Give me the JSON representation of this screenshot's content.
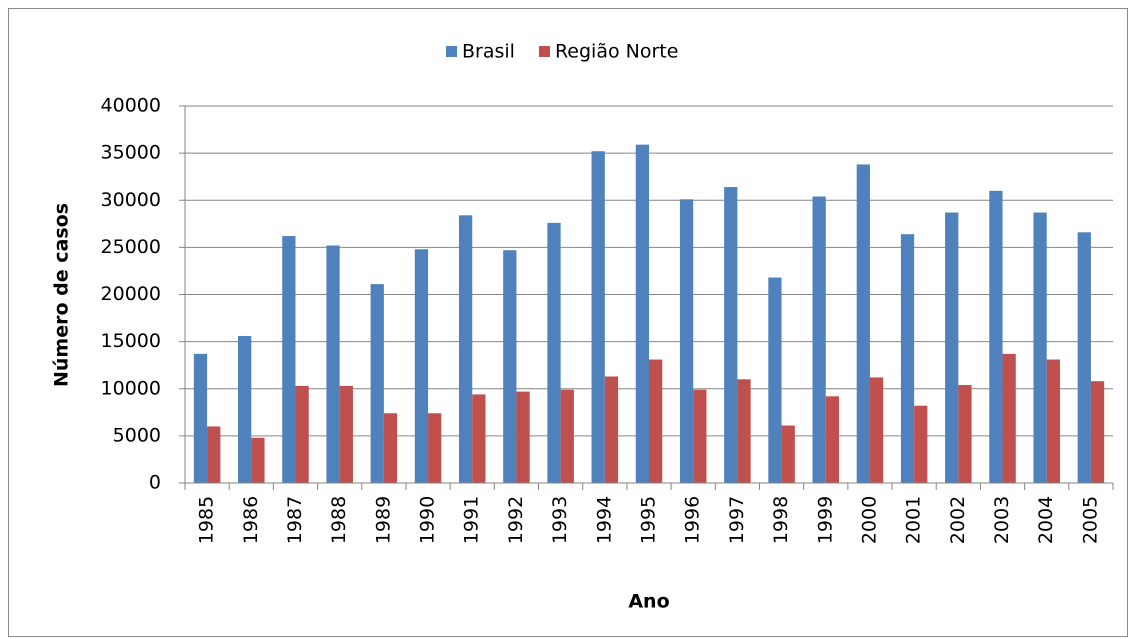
{
  "chart_data": {
    "type": "bar",
    "x_label": "Ano",
    "y_label": "Número de casos",
    "categories": [
      "1985",
      "1986",
      "1987",
      "1988",
      "1989",
      "1990",
      "1991",
      "1992",
      "1993",
      "1994",
      "1995",
      "1996",
      "1997",
      "1998",
      "1999",
      "2000",
      "2001",
      "2002",
      "2003",
      "2004",
      "2005"
    ],
    "series": [
      {
        "name": "Brasil",
        "color": "#4f81bd",
        "values": [
          13700,
          15600,
          26200,
          25200,
          21100,
          24800,
          28400,
          24700,
          27600,
          35200,
          35900,
          30100,
          31400,
          21800,
          30400,
          33800,
          26400,
          28700,
          31000,
          28700,
          26600
        ]
      },
      {
        "name": "Região Norte",
        "color": "#c0504d",
        "values": [
          6000,
          4800,
          10300,
          10300,
          7400,
          7400,
          9400,
          9700,
          9900,
          11300,
          13100,
          9900,
          11000,
          6100,
          9200,
          11200,
          8200,
          10400,
          13700,
          13100,
          10800
        ]
      }
    ],
    "ylim": [
      0,
      40000
    ],
    "yticks": [
      0,
      5000,
      10000,
      15000,
      20000,
      25000,
      30000,
      35000,
      40000
    ],
    "grid": true,
    "legend": "top"
  }
}
